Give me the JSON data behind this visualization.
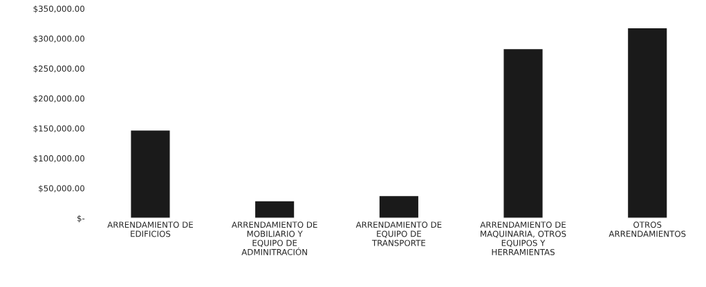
{
  "chart_data": {
    "type": "bar",
    "categories": [
      "ARRENDAMIENTO DE\nEDIFICIOS",
      "ARRENDAMIENTO DE\nMOBILIARIO Y\nEQUIPO DE\nADMINITRACIÓN",
      "ARRENDAMIENTO DE\nEQUIPO DE\nTRANSPORTE",
      "ARRENDAMIENTO DE\nMAQUINARIA, OTROS\nEQUIPOS Y\nHERRAMIENTAS",
      "OTROS\nARRENDAMIENTOS"
    ],
    "values": [
      147000,
      29000,
      37500,
      283000,
      318000
    ],
    "color": "#1a1a1a",
    "ylim": [
      0,
      350000
    ],
    "yticks": [
      {
        "value": 0,
        "label": "$-"
      },
      {
        "value": 50000,
        "label": "$50,000.00"
      },
      {
        "value": 100000,
        "label": "$100,000.00"
      },
      {
        "value": 150000,
        "label": "$150,000.00"
      },
      {
        "value": 200000,
        "label": "$200,000.00"
      },
      {
        "value": 250000,
        "label": "$250,000.00"
      },
      {
        "value": 300000,
        "label": "$300,000.00"
      },
      {
        "value": 350000,
        "label": "$350,000.00"
      }
    ],
    "grid": false,
    "legend": false
  }
}
